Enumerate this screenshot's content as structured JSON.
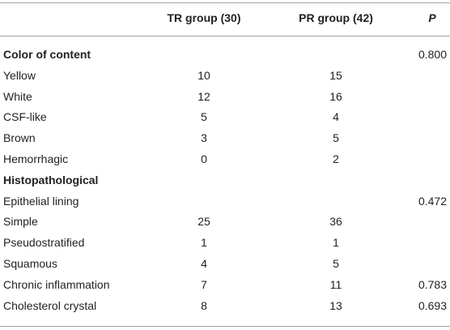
{
  "table": {
    "header": {
      "tr": "TR group (30)",
      "pr": "PR group (42)",
      "p": "P"
    },
    "rows": [
      {
        "label": "Color of content",
        "section": true,
        "p": "0.800"
      },
      {
        "label": "Yellow",
        "tr": 10,
        "pr": 15
      },
      {
        "label": "White",
        "tr": 12,
        "pr": 16
      },
      {
        "label": "CSF-like",
        "tr": 5,
        "pr": 4
      },
      {
        "label": "Brown",
        "tr": 3,
        "pr": 5
      },
      {
        "label": "Hemorrhagic",
        "tr": 0,
        "pr": 2
      },
      {
        "label": "Histopathological",
        "section": true
      },
      {
        "label": "Epithelial lining",
        "p": "0.472"
      },
      {
        "label": "Simple",
        "tr": 25,
        "pr": 36
      },
      {
        "label": "Pseudostratified",
        "tr": 1,
        "pr": 1
      },
      {
        "label": "Squamous",
        "tr": 4,
        "pr": 5
      },
      {
        "label": "Chronic inflammation",
        "tr": 7,
        "pr": 11,
        "p": "0.783"
      },
      {
        "label": "Cholesterol crystal",
        "tr": 8,
        "pr": 13,
        "p": "0.693"
      }
    ]
  }
}
